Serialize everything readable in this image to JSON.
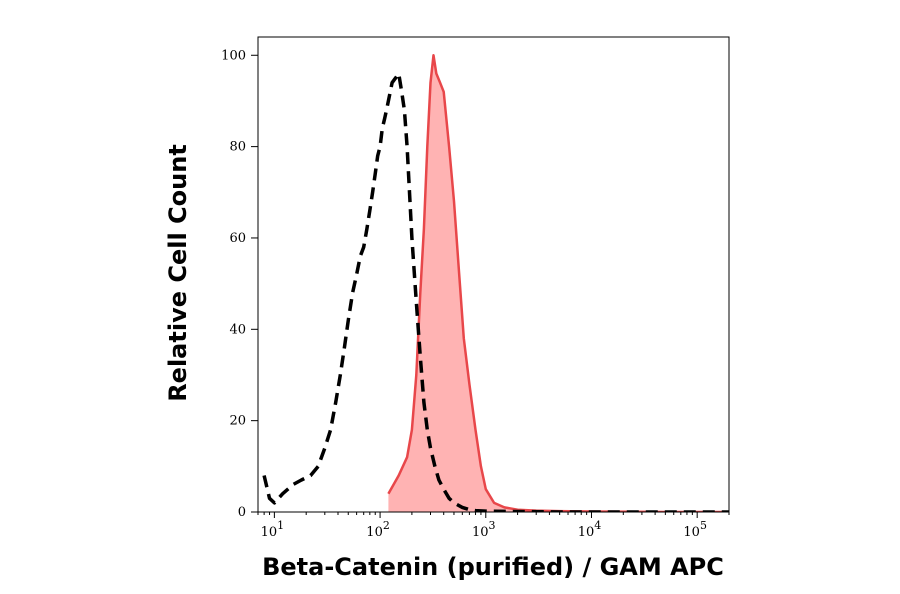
{
  "chart_data": {
    "type": "area",
    "title": "",
    "xlabel": "Beta-Catenin (purified) / GAM APC",
    "ylabel": "Relative Cell Count",
    "x_scale": "log",
    "xlim": [
      7,
      200000
    ],
    "ylim": [
      0,
      104
    ],
    "x_ticks": [
      {
        "value": 10,
        "base": "10",
        "exp": "1"
      },
      {
        "value": 100,
        "base": "10",
        "exp": "2"
      },
      {
        "value": 1000,
        "base": "10",
        "exp": "3"
      },
      {
        "value": 10000,
        "base": "10",
        "exp": "4"
      },
      {
        "value": 100000,
        "base": "10",
        "exp": "5"
      }
    ],
    "y_ticks": [
      0,
      20,
      40,
      60,
      80,
      100
    ],
    "grid": false,
    "legend": "none",
    "colors": {
      "stained_line": "#e8474a",
      "stained_fill": "#ffb3b3",
      "control_line": "#000000"
    },
    "series": [
      {
        "style": "filled solid red",
        "x": [
          120,
          150,
          180,
          200,
          220,
          240,
          260,
          280,
          300,
          320,
          340,
          370,
          400,
          450,
          500,
          560,
          620,
          700,
          800,
          900,
          1000,
          1200,
          1500,
          2000,
          3000,
          5000,
          10000,
          50000,
          200000
        ],
        "y": [
          4,
          8,
          12,
          18,
          30,
          48,
          62,
          80,
          94,
          100,
          96,
          94,
          92,
          80,
          68,
          52,
          38,
          28,
          18,
          10,
          5,
          2,
          1,
          0.5,
          0.3,
          0.2,
          0.1,
          0,
          0
        ]
      },
      {
        "style": "dashed black",
        "x": [
          8,
          9,
          10,
          12,
          15,
          18,
          22,
          26,
          30,
          34,
          38,
          42,
          46,
          50,
          55,
          60,
          65,
          70,
          75,
          80,
          85,
          90,
          95,
          100,
          105,
          110,
          115,
          120,
          130,
          140,
          150,
          160,
          170,
          180,
          190,
          200,
          220,
          240,
          260,
          280,
          300,
          330,
          360,
          400,
          450,
          500,
          600,
          700,
          800,
          1000,
          2000,
          5000,
          20000,
          200000
        ],
        "y": [
          8,
          3,
          2,
          4,
          6,
          7,
          8,
          10,
          14,
          18,
          24,
          30,
          36,
          42,
          48,
          52,
          56,
          58,
          62,
          66,
          70,
          74,
          78,
          80,
          84,
          86,
          88,
          90,
          94,
          95,
          96,
          92,
          88,
          80,
          70,
          60,
          46,
          34,
          24,
          18,
          14,
          10,
          7,
          5,
          3,
          2,
          1,
          0.5,
          0.3,
          0.2,
          0.1,
          0,
          0,
          0
        ]
      }
    ]
  }
}
